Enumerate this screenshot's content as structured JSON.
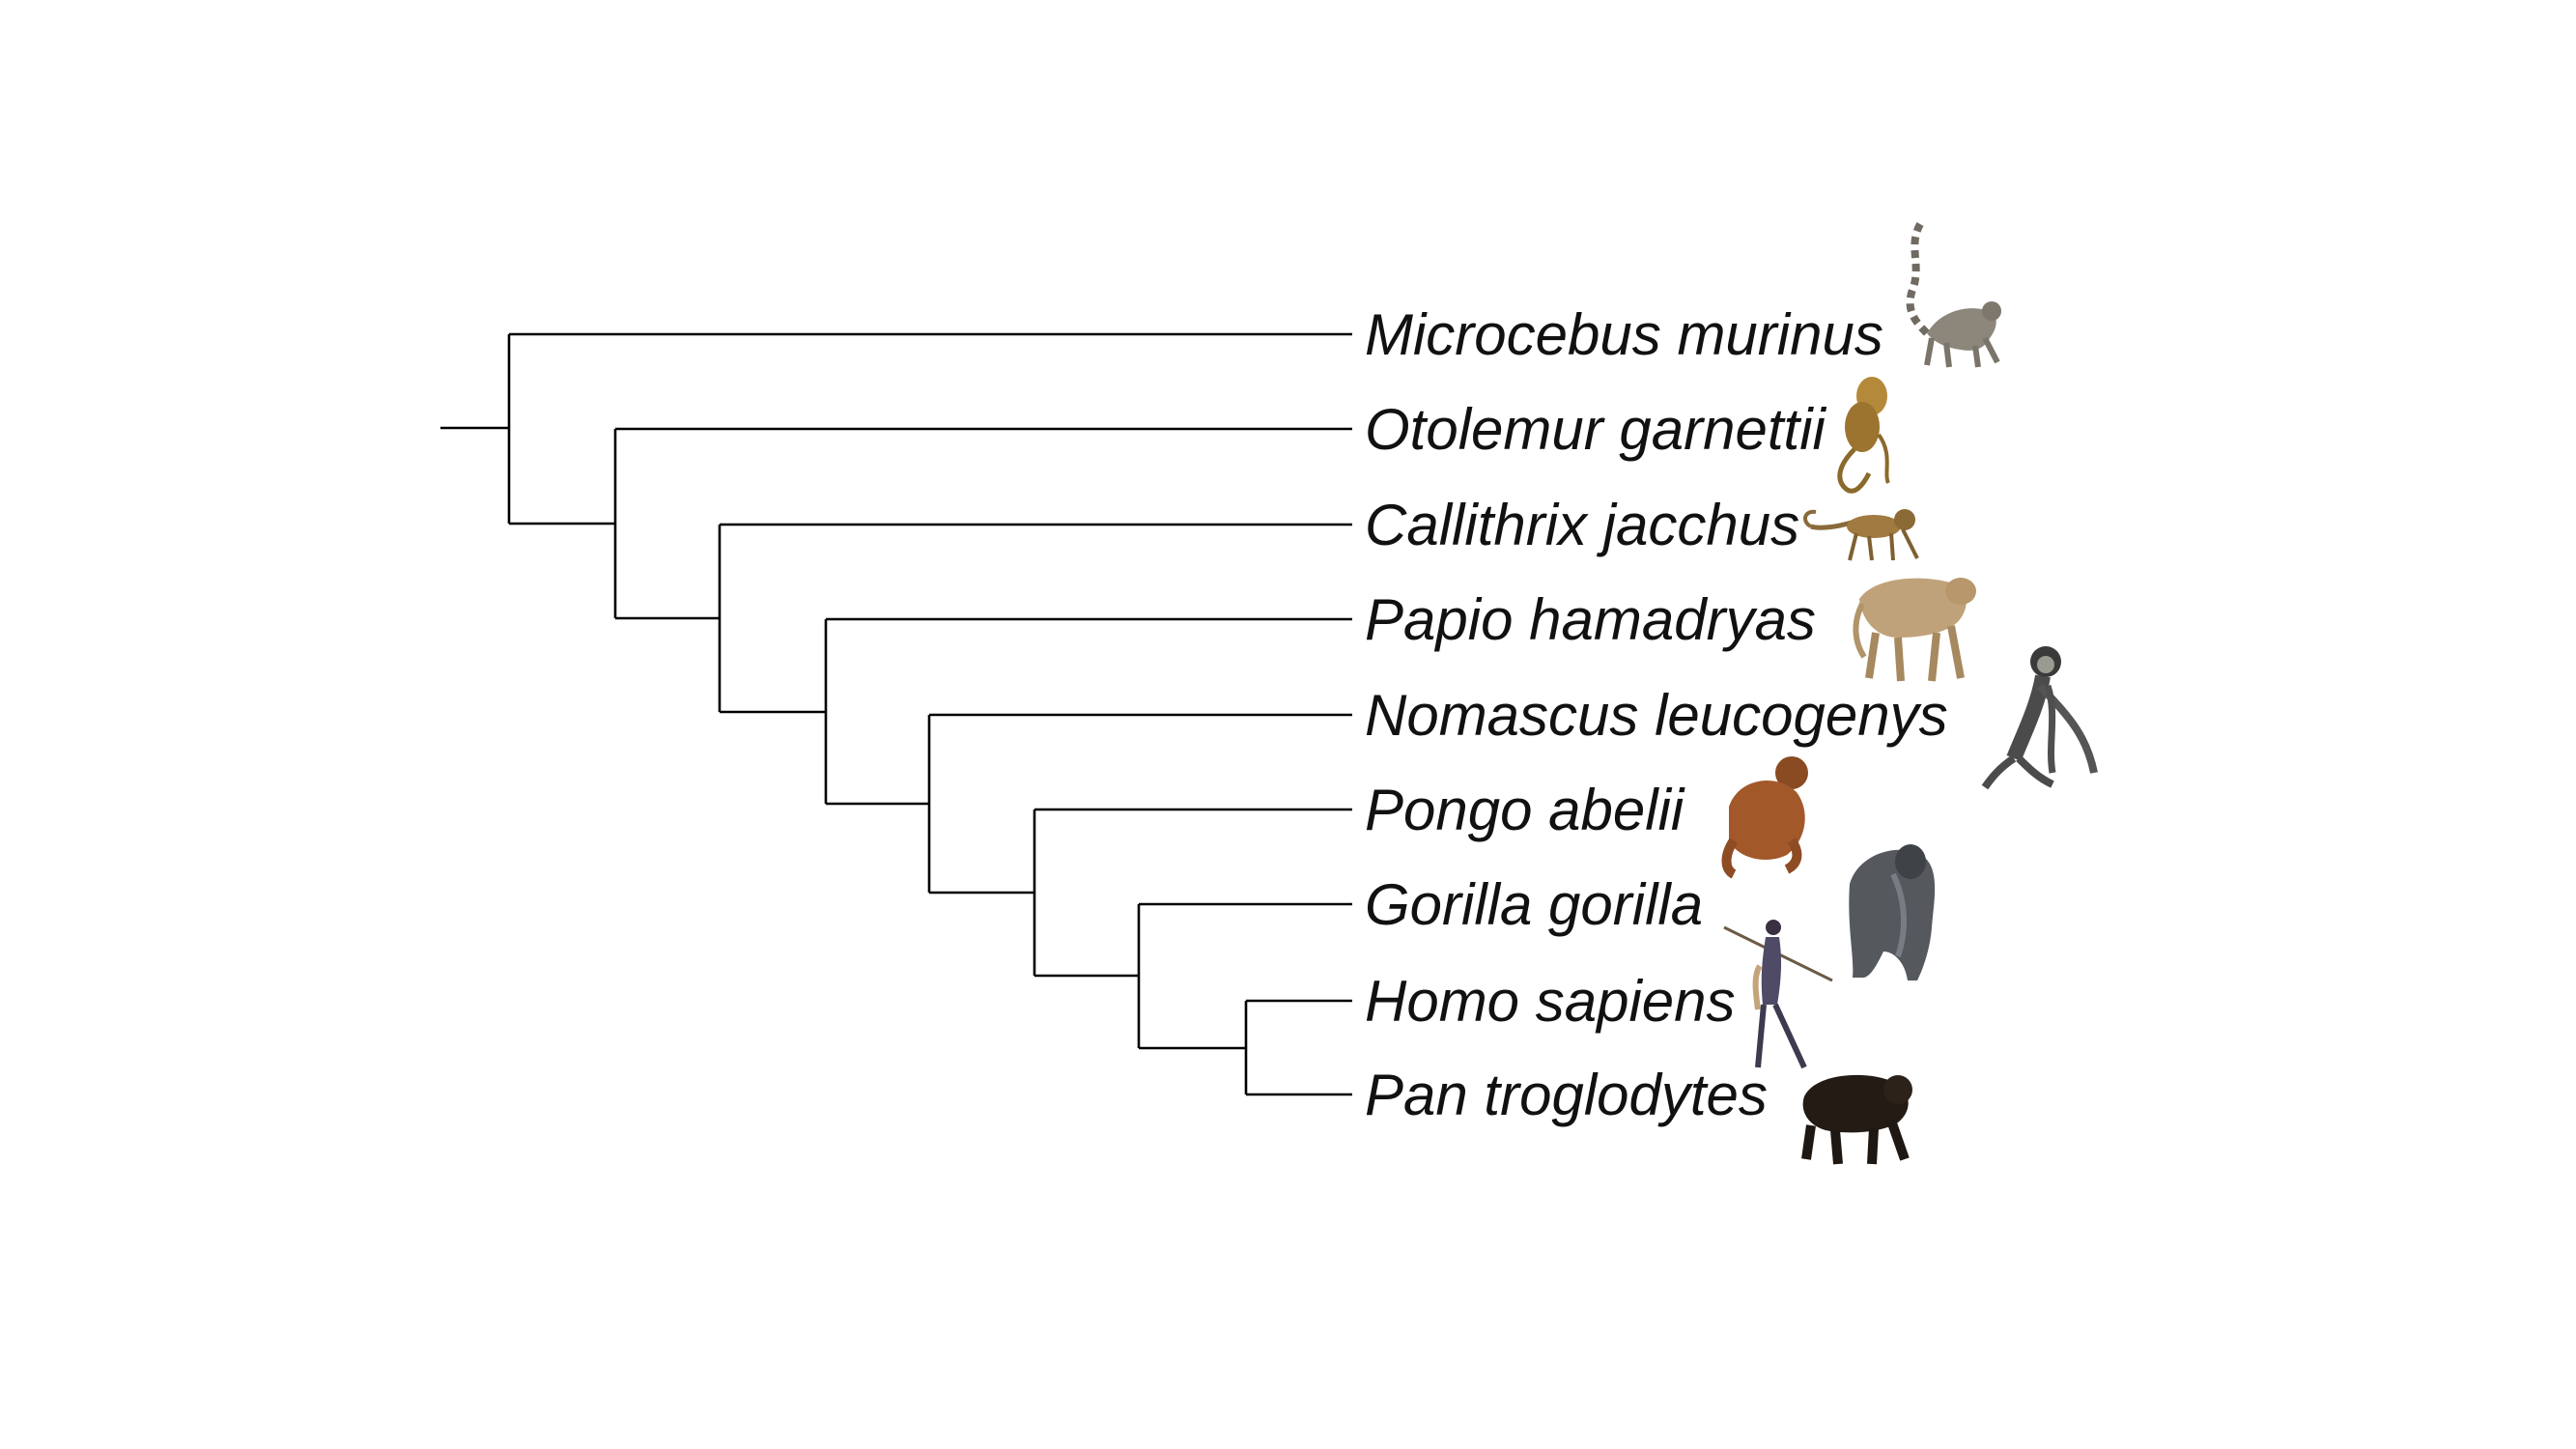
{
  "tree": {
    "newick": "(Microcebus murinus,(Otolemur garnettii,(Callithrix jacchus,(Papio hamadryas,(Nomascus leucogenys,(Pongo abelii,(Gorilla gorilla,(Homo sapiens,Pan troglodytes))))))));",
    "taxa": [
      {
        "name": "Microcebus murinus",
        "icon": "ring-tailed-lemur-icon"
      },
      {
        "name": "Otolemur garnettii",
        "icon": "galago-icon"
      },
      {
        "name": "Callithrix jacchus",
        "icon": "marmoset-icon"
      },
      {
        "name": "Papio hamadryas",
        "icon": "baboon-icon"
      },
      {
        "name": "Nomascus leucogenys",
        "icon": "gibbon-icon"
      },
      {
        "name": "Pongo abelii",
        "icon": "orangutan-icon"
      },
      {
        "name": "Gorilla gorilla",
        "icon": "gorilla-icon"
      },
      {
        "name": "Homo sapiens",
        "icon": "human-with-spear-icon"
      },
      {
        "name": "Pan troglodytes",
        "icon": "chimpanzee-icon"
      }
    ]
  },
  "colors": {
    "branch": "#000000",
    "label": "#111111",
    "background": "#ffffff"
  }
}
